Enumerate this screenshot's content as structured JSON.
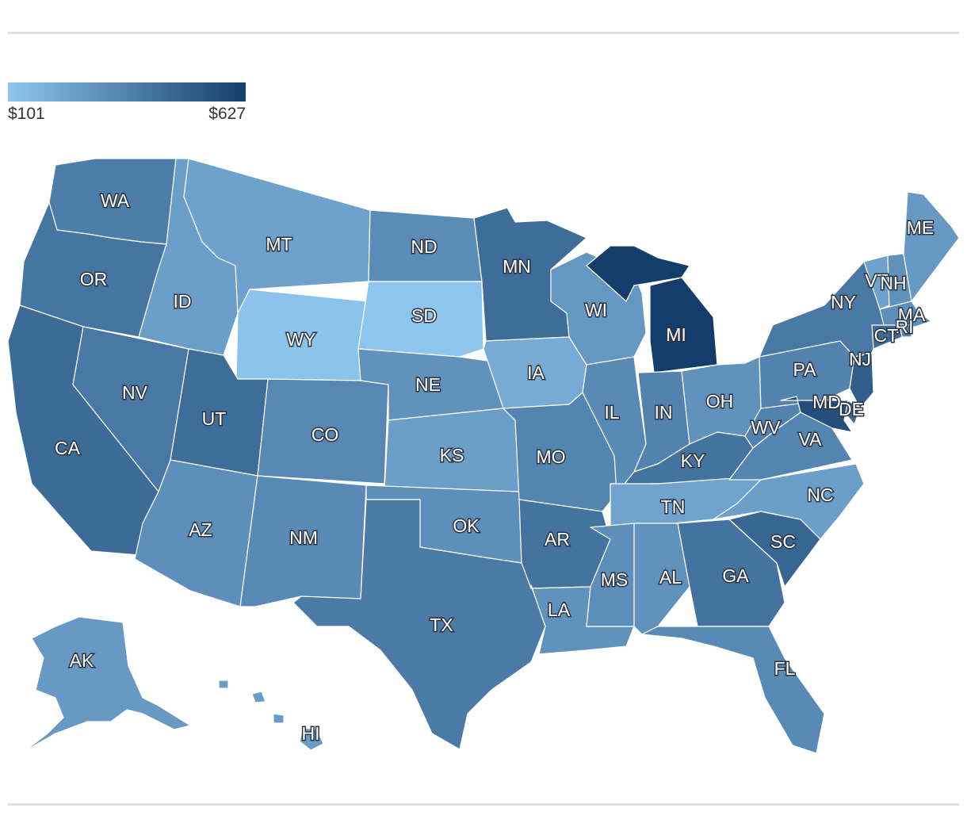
{
  "legend": {
    "min_label": "$101",
    "max_label": "$627",
    "min_value": 101,
    "max_value": 627,
    "color_low": "#8ec5ee",
    "color_high": "#143d6b"
  },
  "chart_data": {
    "type": "choropleth",
    "region": "United States",
    "states": [
      {
        "abbr": "WA",
        "value": 380
      },
      {
        "abbr": "OR",
        "value": 410
      },
      {
        "abbr": "CA",
        "value": 450
      },
      {
        "abbr": "NV",
        "value": 400
      },
      {
        "abbr": "ID",
        "value": 250
      },
      {
        "abbr": "MT",
        "value": 240
      },
      {
        "abbr": "WY",
        "value": 110
      },
      {
        "abbr": "UT",
        "value": 440
      },
      {
        "abbr": "AZ",
        "value": 310
      },
      {
        "abbr": "CO",
        "value": 340
      },
      {
        "abbr": "NM",
        "value": 330
      },
      {
        "abbr": "ND",
        "value": 320
      },
      {
        "abbr": "SD",
        "value": 101
      },
      {
        "abbr": "NE",
        "value": 300
      },
      {
        "abbr": "KS",
        "value": 250
      },
      {
        "abbr": "OK",
        "value": 310
      },
      {
        "abbr": "TX",
        "value": 390
      },
      {
        "abbr": "MN",
        "value": 440
      },
      {
        "abbr": "IA",
        "value": 200
      },
      {
        "abbr": "MO",
        "value": 350
      },
      {
        "abbr": "AR",
        "value": 420
      },
      {
        "abbr": "LA",
        "value": 300
      },
      {
        "abbr": "WI",
        "value": 280
      },
      {
        "abbr": "IL",
        "value": 330
      },
      {
        "abbr": "MI",
        "value": 627
      },
      {
        "abbr": "IN",
        "value": 360
      },
      {
        "abbr": "OH",
        "value": 300
      },
      {
        "abbr": "KY",
        "value": 420
      },
      {
        "abbr": "TN",
        "value": 230
      },
      {
        "abbr": "MS",
        "value": 310
      },
      {
        "abbr": "AL",
        "value": 300
      },
      {
        "abbr": "GA",
        "value": 420
      },
      {
        "abbr": "FL",
        "value": 330
      },
      {
        "abbr": "SC",
        "value": 470
      },
      {
        "abbr": "NC",
        "value": 250
      },
      {
        "abbr": "VA",
        "value": 350
      },
      {
        "abbr": "WV",
        "value": 360
      },
      {
        "abbr": "PA",
        "value": 360
      },
      {
        "abbr": "NY",
        "value": 400
      },
      {
        "abbr": "VT",
        "value": 240
      },
      {
        "abbr": "NH",
        "value": 300
      },
      {
        "abbr": "ME",
        "value": 270
      },
      {
        "abbr": "MA",
        "value": 310
      },
      {
        "abbr": "RI",
        "value": 350
      },
      {
        "abbr": "CT",
        "value": 450
      },
      {
        "abbr": "NJ",
        "value": 500
      },
      {
        "abbr": "DE",
        "value": 460
      },
      {
        "abbr": "MD",
        "value": 560
      },
      {
        "abbr": "AK",
        "value": 270
      },
      {
        "abbr": "HI",
        "value": 260
      }
    ]
  }
}
